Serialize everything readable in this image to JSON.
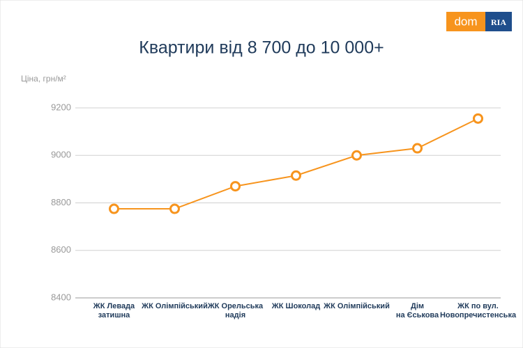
{
  "logo": {
    "left": "dom",
    "right": "RIA"
  },
  "chart_data": {
    "type": "line",
    "title": "Квартири від 8 700 до 10 000+",
    "y_label": "Ціна, грн/м²",
    "categories": [
      [
        "ЖК Левада",
        "затишна"
      ],
      [
        "ЖК Олімпійський"
      ],
      [
        "ЖК Орельська",
        "надія"
      ],
      [
        "ЖК Шоколад"
      ],
      [
        "ЖК Олімпійський"
      ],
      [
        "Дім",
        "на Єськова"
      ],
      [
        "ЖК по вул.",
        "Новопречистенська"
      ]
    ],
    "series": [
      {
        "name": "Ціна",
        "color": "#f7941d",
        "values": [
          8775,
          8775,
          8870,
          8915,
          9000,
          9030,
          9155
        ]
      }
    ],
    "ylim": [
      8400,
      9200
    ],
    "yticks": [
      8400,
      8600,
      8800,
      9000,
      9200
    ],
    "grid": true
  }
}
